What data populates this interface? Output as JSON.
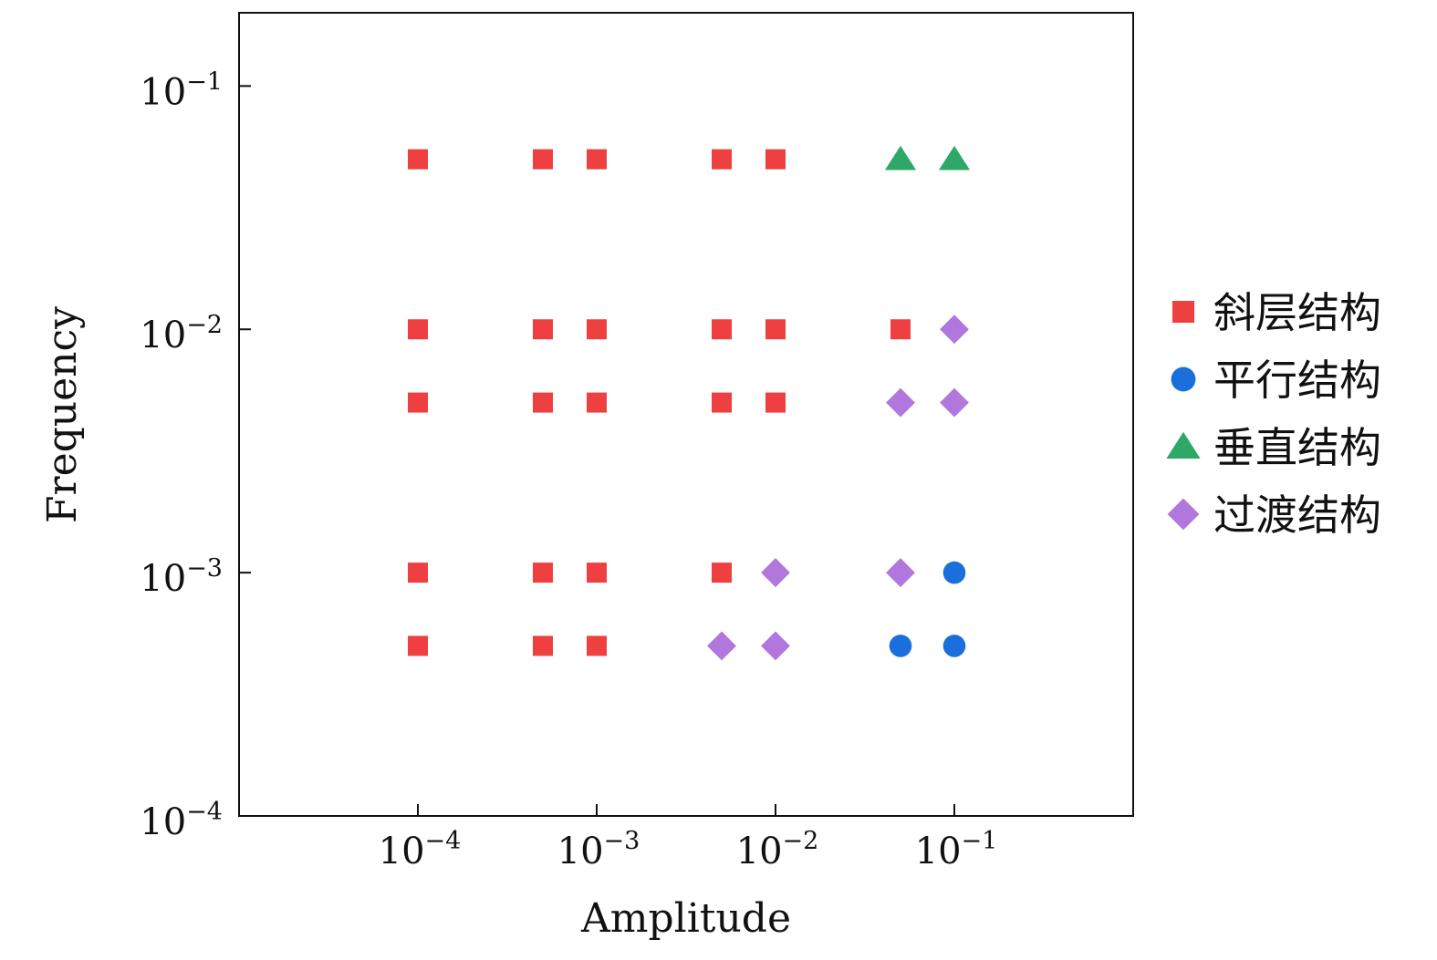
{
  "chart_data": {
    "type": "scatter",
    "title": "",
    "xlabel": "Amplitude",
    "ylabel": "Frequency",
    "xscale": "log",
    "yscale": "log",
    "xlim": [
      1e-05,
      1
    ],
    "ylim": [
      0.0001,
      0.2
    ],
    "grid": false,
    "legend_position": "right",
    "x_ticks": [
      {
        "base": "10",
        "exp": "−4",
        "value": 0.0001
      },
      {
        "base": "10",
        "exp": "−3",
        "value": 0.001
      },
      {
        "base": "10",
        "exp": "−2",
        "value": 0.01
      },
      {
        "base": "10",
        "exp": "−1",
        "value": 0.1
      }
    ],
    "y_ticks": [
      {
        "base": "10",
        "exp": "−4",
        "value": 0.0001
      },
      {
        "base": "10",
        "exp": "−3",
        "value": 0.001
      },
      {
        "base": "10",
        "exp": "−2",
        "value": 0.01
      },
      {
        "base": "10",
        "exp": "−1",
        "value": 0.1
      }
    ],
    "series": [
      {
        "name": "斜层结构",
        "marker": "square",
        "color": "#ee4040",
        "points": [
          [
            0.0001,
            0.05
          ],
          [
            0.0005,
            0.05
          ],
          [
            0.001,
            0.05
          ],
          [
            0.005,
            0.05
          ],
          [
            0.01,
            0.05
          ],
          [
            0.0001,
            0.01
          ],
          [
            0.0005,
            0.01
          ],
          [
            0.001,
            0.01
          ],
          [
            0.005,
            0.01
          ],
          [
            0.01,
            0.01
          ],
          [
            0.05,
            0.01
          ],
          [
            0.0001,
            0.005
          ],
          [
            0.0005,
            0.005
          ],
          [
            0.001,
            0.005
          ],
          [
            0.005,
            0.005
          ],
          [
            0.01,
            0.005
          ],
          [
            0.0001,
            0.001
          ],
          [
            0.0005,
            0.001
          ],
          [
            0.001,
            0.001
          ],
          [
            0.005,
            0.001
          ],
          [
            0.0001,
            0.0005
          ],
          [
            0.0005,
            0.0005
          ],
          [
            0.001,
            0.0005
          ]
        ]
      },
      {
        "name": "平行结构",
        "marker": "circle",
        "color": "#1a6fdc",
        "points": [
          [
            0.1,
            0.001
          ],
          [
            0.05,
            0.0005
          ],
          [
            0.1,
            0.0005
          ]
        ]
      },
      {
        "name": "垂直结构",
        "marker": "triangle",
        "color": "#2ea866",
        "points": [
          [
            0.05,
            0.05
          ],
          [
            0.1,
            0.05
          ]
        ]
      },
      {
        "name": "过渡结构",
        "marker": "diamond",
        "color": "#b277dd",
        "points": [
          [
            0.1,
            0.01
          ],
          [
            0.05,
            0.005
          ],
          [
            0.1,
            0.005
          ],
          [
            0.01,
            0.001
          ],
          [
            0.05,
            0.001
          ],
          [
            0.005,
            0.0005
          ],
          [
            0.01,
            0.0005
          ]
        ]
      }
    ]
  }
}
